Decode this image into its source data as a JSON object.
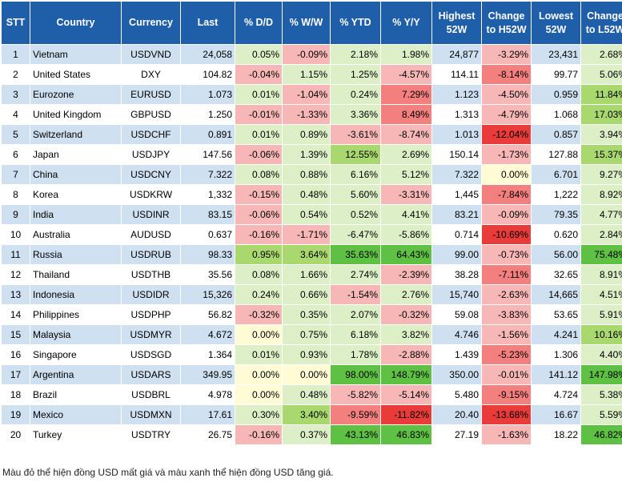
{
  "headers": [
    "STT",
    "Country",
    "Currency",
    "Last",
    "% D/D",
    "% W/W",
    "% YTD",
    "% Y/Y",
    "Highest 52W",
    "Change to H52W",
    "Lowest 52W",
    "Change to L52W"
  ],
  "palette": {
    "header_bg": "#1f5ea8",
    "row_blue": "#cfe0f1",
    "row_white": "#ffffff",
    "red_light": "#f8b7b7",
    "red_mid": "#f37f7f",
    "red_dark": "#ea3b3b",
    "yellow": "#fffbd5",
    "green_light": "#dcefc6",
    "green_mid": "#a9d86e",
    "green_dark": "#5ec144"
  },
  "rows": [
    {
      "stt": "1",
      "country": "Vietnam",
      "currency": "USDVND",
      "last": "24,058",
      "dd": "0.05%",
      "ww": "-0.09%",
      "ytd": "2.18%",
      "yy": "1.98%",
      "h52": "24,877",
      "ch52": "-3.29%",
      "l52": "23,431",
      "cl52": "2.68%",
      "c_dd": "green_light",
      "c_ww": "red_light",
      "c_ytd": "green_light",
      "c_yy": "green_light",
      "c_ch52": "red_light",
      "c_cl52": "green_light"
    },
    {
      "stt": "2",
      "country": "United States",
      "currency": "DXY",
      "last": "104.82",
      "dd": "-0.04%",
      "ww": "1.15%",
      "ytd": "1.25%",
      "yy": "-4.57%",
      "h52": "114.11",
      "ch52": "-8.14%",
      "l52": "99.77",
      "cl52": "5.06%",
      "c_dd": "red_light",
      "c_ww": "green_light",
      "c_ytd": "green_light",
      "c_yy": "red_light",
      "c_ch52": "red_mid",
      "c_cl52": "green_light"
    },
    {
      "stt": "3",
      "country": "Eurozone",
      "currency": "EURUSD",
      "last": "1.073",
      "dd": "0.01%",
      "ww": "-1.04%",
      "ytd": "0.24%",
      "yy": "7.29%",
      "h52": "1.123",
      "ch52": "-4.50%",
      "l52": "0.959",
      "cl52": "11.84%",
      "c_dd": "green_light",
      "c_ww": "red_light",
      "c_ytd": "green_light",
      "c_yy": "red_mid",
      "c_ch52": "red_light",
      "c_cl52": "green_mid"
    },
    {
      "stt": "4",
      "country": "United Kingdom",
      "currency": "GBPUSD",
      "last": "1.250",
      "dd": "-0.01%",
      "ww": "-1.33%",
      "ytd": "3.36%",
      "yy": "8.49%",
      "h52": "1.313",
      "ch52": "-4.79%",
      "l52": "1.068",
      "cl52": "17.03%",
      "c_dd": "red_light",
      "c_ww": "red_light",
      "c_ytd": "green_light",
      "c_yy": "red_mid",
      "c_ch52": "red_light",
      "c_cl52": "green_mid"
    },
    {
      "stt": "5",
      "country": "Switzerland",
      "currency": "USDCHF",
      "last": "0.891",
      "dd": "0.01%",
      "ww": "0.89%",
      "ytd": "-3.61%",
      "yy": "-8.74%",
      "h52": "1.013",
      "ch52": "-12.04%",
      "l52": "0.857",
      "cl52": "3.94%",
      "c_dd": "green_light",
      "c_ww": "green_light",
      "c_ytd": "red_light",
      "c_yy": "red_light",
      "c_ch52": "red_dark",
      "c_cl52": "green_light"
    },
    {
      "stt": "6",
      "country": "Japan",
      "currency": "USDJPY",
      "last": "147.56",
      "dd": "-0.06%",
      "ww": "1.39%",
      "ytd": "12.55%",
      "yy": "2.69%",
      "h52": "150.14",
      "ch52": "-1.73%",
      "l52": "127.88",
      "cl52": "15.37%",
      "c_dd": "red_light",
      "c_ww": "green_light",
      "c_ytd": "green_mid",
      "c_yy": "green_light",
      "c_ch52": "red_light",
      "c_cl52": "green_mid"
    },
    {
      "stt": "7",
      "country": "China",
      "currency": "USDCNY",
      "last": "7.322",
      "dd": "0.08%",
      "ww": "0.88%",
      "ytd": "6.16%",
      "yy": "5.12%",
      "h52": "7.322",
      "ch52": "0.00%",
      "l52": "6.701",
      "cl52": "9.27%",
      "c_dd": "green_light",
      "c_ww": "green_light",
      "c_ytd": "green_light",
      "c_yy": "green_light",
      "c_ch52": "yellow",
      "c_cl52": "green_light"
    },
    {
      "stt": "8",
      "country": "Korea",
      "currency": "USDKRW",
      "last": "1,332",
      "dd": "-0.15%",
      "ww": "0.48%",
      "ytd": "5.60%",
      "yy": "-3.31%",
      "h52": "1,445",
      "ch52": "-7.84%",
      "l52": "1,222",
      "cl52": "8.92%",
      "c_dd": "red_light",
      "c_ww": "green_light",
      "c_ytd": "green_light",
      "c_yy": "red_light",
      "c_ch52": "red_mid",
      "c_cl52": "green_light"
    },
    {
      "stt": "9",
      "country": "India",
      "currency": "USDINR",
      "last": "83.15",
      "dd": "-0.06%",
      "ww": "0.54%",
      "ytd": "0.52%",
      "yy": "4.41%",
      "h52": "83.21",
      "ch52": "-0.09%",
      "l52": "79.35",
      "cl52": "4.77%",
      "c_dd": "red_light",
      "c_ww": "green_light",
      "c_ytd": "green_light",
      "c_yy": "green_light",
      "c_ch52": "red_light",
      "c_cl52": "green_light"
    },
    {
      "stt": "10",
      "country": "Australia",
      "currency": "AUDUSD",
      "last": "0.637",
      "dd": "-0.16%",
      "ww": "-1.71%",
      "ytd": "-6.47%",
      "yy": "-5.86%",
      "h52": "0.714",
      "ch52": "-10.69%",
      "l52": "0.620",
      "cl52": "2.84%",
      "c_dd": "red_light",
      "c_ww": "red_light",
      "c_ytd": "green_light",
      "c_yy": "green_light",
      "c_ch52": "red_dark",
      "c_cl52": "green_light"
    },
    {
      "stt": "11",
      "country": "Russia",
      "currency": "USDRUB",
      "last": "98.33",
      "dd": "0.95%",
      "ww": "3.64%",
      "ytd": "35.63%",
      "yy": "64.43%",
      "h52": "99.00",
      "ch52": "-0.73%",
      "l52": "56.00",
      "cl52": "75.48%",
      "c_dd": "green_mid",
      "c_ww": "green_mid",
      "c_ytd": "green_dark",
      "c_yy": "green_dark",
      "c_ch52": "red_light",
      "c_cl52": "green_dark"
    },
    {
      "stt": "12",
      "country": "Thailand",
      "currency": "USDTHB",
      "last": "35.56",
      "dd": "0.08%",
      "ww": "1.66%",
      "ytd": "2.74%",
      "yy": "-2.39%",
      "h52": "38.28",
      "ch52": "-7.11%",
      "l52": "32.65",
      "cl52": "8.91%",
      "c_dd": "green_light",
      "c_ww": "green_light",
      "c_ytd": "green_light",
      "c_yy": "red_light",
      "c_ch52": "red_mid",
      "c_cl52": "green_light"
    },
    {
      "stt": "13",
      "country": "Indonesia",
      "currency": "USDIDR",
      "last": "15,326",
      "dd": "0.24%",
      "ww": "0.66%",
      "ytd": "-1.54%",
      "yy": "2.76%",
      "h52": "15,740",
      "ch52": "-2.63%",
      "l52": "14,665",
      "cl52": "4.51%",
      "c_dd": "green_light",
      "c_ww": "green_light",
      "c_ytd": "red_light",
      "c_yy": "green_light",
      "c_ch52": "red_light",
      "c_cl52": "green_light"
    },
    {
      "stt": "14",
      "country": "Philippines",
      "currency": "USDPHP",
      "last": "56.82",
      "dd": "-0.32%",
      "ww": "0.35%",
      "ytd": "2.07%",
      "yy": "-0.32%",
      "h52": "59.08",
      "ch52": "-3.83%",
      "l52": "53.65",
      "cl52": "5.91%",
      "c_dd": "red_light",
      "c_ww": "green_light",
      "c_ytd": "green_light",
      "c_yy": "red_light",
      "c_ch52": "red_light",
      "c_cl52": "green_light"
    },
    {
      "stt": "15",
      "country": "Malaysia",
      "currency": "USDMYR",
      "last": "4.672",
      "dd": "0.00%",
      "ww": "0.75%",
      "ytd": "6.18%",
      "yy": "3.82%",
      "h52": "4.746",
      "ch52": "-1.56%",
      "l52": "4.241",
      "cl52": "10.16%",
      "c_dd": "yellow",
      "c_ww": "green_light",
      "c_ytd": "green_light",
      "c_yy": "green_light",
      "c_ch52": "red_light",
      "c_cl52": "green_mid"
    },
    {
      "stt": "16",
      "country": "Singapore",
      "currency": "USDSGD",
      "last": "1.364",
      "dd": "0.01%",
      "ww": "0.93%",
      "ytd": "1.78%",
      "yy": "-2.88%",
      "h52": "1.439",
      "ch52": "-5.23%",
      "l52": "1.306",
      "cl52": "4.40%",
      "c_dd": "green_light",
      "c_ww": "green_light",
      "c_ytd": "green_light",
      "c_yy": "red_light",
      "c_ch52": "red_mid",
      "c_cl52": "green_light"
    },
    {
      "stt": "17",
      "country": "Argentina",
      "currency": "USDARS",
      "last": "349.95",
      "dd": "0.00%",
      "ww": "0.00%",
      "ytd": "98.00%",
      "yy": "148.79%",
      "h52": "350.00",
      "ch52": "-0.01%",
      "l52": "141.12",
      "cl52": "147.98%",
      "c_dd": "yellow",
      "c_ww": "yellow",
      "c_ytd": "green_dark",
      "c_yy": "green_dark",
      "c_ch52": "red_light",
      "c_cl52": "green_dark"
    },
    {
      "stt": "18",
      "country": "Brazil",
      "currency": "USDBRL",
      "last": "4.978",
      "dd": "0.00%",
      "ww": "0.48%",
      "ytd": "-5.82%",
      "yy": "-5.14%",
      "h52": "5.480",
      "ch52": "-9.15%",
      "l52": "4.724",
      "cl52": "5.38%",
      "c_dd": "yellow",
      "c_ww": "green_light",
      "c_ytd": "red_light",
      "c_yy": "red_light",
      "c_ch52": "red_mid",
      "c_cl52": "green_light"
    },
    {
      "stt": "19",
      "country": "Mexico",
      "currency": "USDMXN",
      "last": "17.61",
      "dd": "0.30%",
      "ww": "3.40%",
      "ytd": "-9.59%",
      "yy": "-11.82%",
      "h52": "20.40",
      "ch52": "-13.68%",
      "l52": "16.67",
      "cl52": "5.59%",
      "c_dd": "green_light",
      "c_ww": "green_mid",
      "c_ytd": "red_mid",
      "c_yy": "red_dark",
      "c_ch52": "red_dark",
      "c_cl52": "green_light"
    },
    {
      "stt": "20",
      "country": "Turkey",
      "currency": "USDTRY",
      "last": "26.75",
      "dd": "-0.16%",
      "ww": "0.37%",
      "ytd": "43.13%",
      "yy": "46.83%",
      "h52": "27.19",
      "ch52": "-1.63%",
      "l52": "18.22",
      "cl52": "46.82%",
      "c_dd": "red_light",
      "c_ww": "green_light",
      "c_ytd": "green_dark",
      "c_yy": "green_dark",
      "c_ch52": "red_light",
      "c_cl52": "green_dark"
    }
  ],
  "footnote": "Màu đỏ thể hiện đồng USD mất giá và màu xanh thể hiện đồng USD tăng giá."
}
